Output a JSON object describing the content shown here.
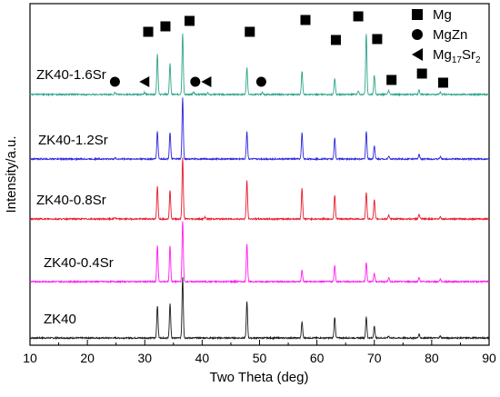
{
  "chart_data": {
    "type": "line",
    "xlabel": "Two Theta (deg)",
    "ylabel": "Intensity/a.u.",
    "xlim": [
      10,
      90
    ],
    "xticks": [
      10,
      20,
      30,
      40,
      50,
      60,
      70,
      80,
      90
    ],
    "grid": false,
    "series": [
      {
        "name": "ZK40",
        "color": "#1a1a1a",
        "peaks": [
          [
            32.2,
            0.85
          ],
          [
            34.4,
            0.9
          ],
          [
            36.6,
            1.6
          ],
          [
            47.8,
            0.95
          ],
          [
            57.4,
            0.42
          ],
          [
            63.1,
            0.55
          ],
          [
            68.6,
            0.55
          ],
          [
            70.0,
            0.3
          ],
          [
            72.5,
            0.05
          ],
          [
            77.8,
            0.1
          ],
          [
            81.5,
            0.05
          ]
        ]
      },
      {
        "name": "ZK40-0.4Sr",
        "color": "#ff1ef0",
        "peaks": [
          [
            32.2,
            0.95
          ],
          [
            34.4,
            0.95
          ],
          [
            36.6,
            1.6
          ],
          [
            47.8,
            1.0
          ],
          [
            57.4,
            0.3
          ],
          [
            63.1,
            0.42
          ],
          [
            68.6,
            0.5
          ],
          [
            70.0,
            0.22
          ],
          [
            72.5,
            0.1
          ],
          [
            77.8,
            0.1
          ],
          [
            81.5,
            0.07
          ]
        ]
      },
      {
        "name": "ZK40-0.8Sr",
        "color": "#e8192c",
        "peaks": [
          [
            32.2,
            0.85
          ],
          [
            34.4,
            0.75
          ],
          [
            36.6,
            1.6
          ],
          [
            47.8,
            1.0
          ],
          [
            57.4,
            0.8
          ],
          [
            63.1,
            0.62
          ],
          [
            68.6,
            0.7
          ],
          [
            70.0,
            0.5
          ],
          [
            72.5,
            0.1
          ],
          [
            77.8,
            0.12
          ],
          [
            81.5,
            0.06
          ],
          [
            40.5,
            0.05
          ],
          [
            24.8,
            0.04
          ]
        ]
      },
      {
        "name": "ZK40-1.2Sr",
        "color": "#2a24e0",
        "peaks": [
          [
            32.2,
            0.72
          ],
          [
            34.4,
            0.7
          ],
          [
            36.6,
            1.6
          ],
          [
            47.8,
            0.72
          ],
          [
            57.4,
            0.68
          ],
          [
            63.1,
            0.55
          ],
          [
            68.6,
            0.72
          ],
          [
            70.0,
            0.35
          ],
          [
            72.5,
            0.08
          ],
          [
            77.8,
            0.12
          ],
          [
            81.5,
            0.06
          ],
          [
            24.8,
            0.03
          ]
        ]
      },
      {
        "name": "ZK40-1.6Sr",
        "color": "#2ea58a",
        "peaks": [
          [
            32.2,
            1.05
          ],
          [
            34.4,
            0.8
          ],
          [
            36.6,
            1.6
          ],
          [
            47.8,
            0.7
          ],
          [
            57.4,
            0.62
          ],
          [
            63.1,
            0.42
          ],
          [
            68.6,
            1.6
          ],
          [
            70.0,
            0.5
          ],
          [
            72.5,
            0.1
          ],
          [
            77.8,
            0.12
          ],
          [
            81.5,
            0.06
          ],
          [
            24.8,
            0.06
          ],
          [
            30.0,
            0.06
          ],
          [
            38.5,
            0.08
          ],
          [
            41.0,
            0.05
          ],
          [
            50.5,
            0.06
          ],
          [
            67.2,
            0.1
          ]
        ]
      }
    ],
    "markers": {
      "mg": [
        30.6,
        33.6,
        37.8,
        48.3,
        58.0,
        63.3,
        67.2,
        70.5,
        73.0,
        78.3,
        82.0
      ],
      "mgzn": [
        24.8,
        38.8,
        50.3
      ],
      "mg17sr2": [
        30.0,
        40.8
      ]
    },
    "legend": {
      "placement": "top-right",
      "entries": [
        {
          "label": "Mg",
          "marker": "square"
        },
        {
          "label": "MgZn",
          "marker": "circle"
        },
        {
          "label": "Mg",
          "sub": "17",
          "tail": "Sr",
          "sub2": "2",
          "marker": "triangle-left"
        }
      ]
    }
  }
}
